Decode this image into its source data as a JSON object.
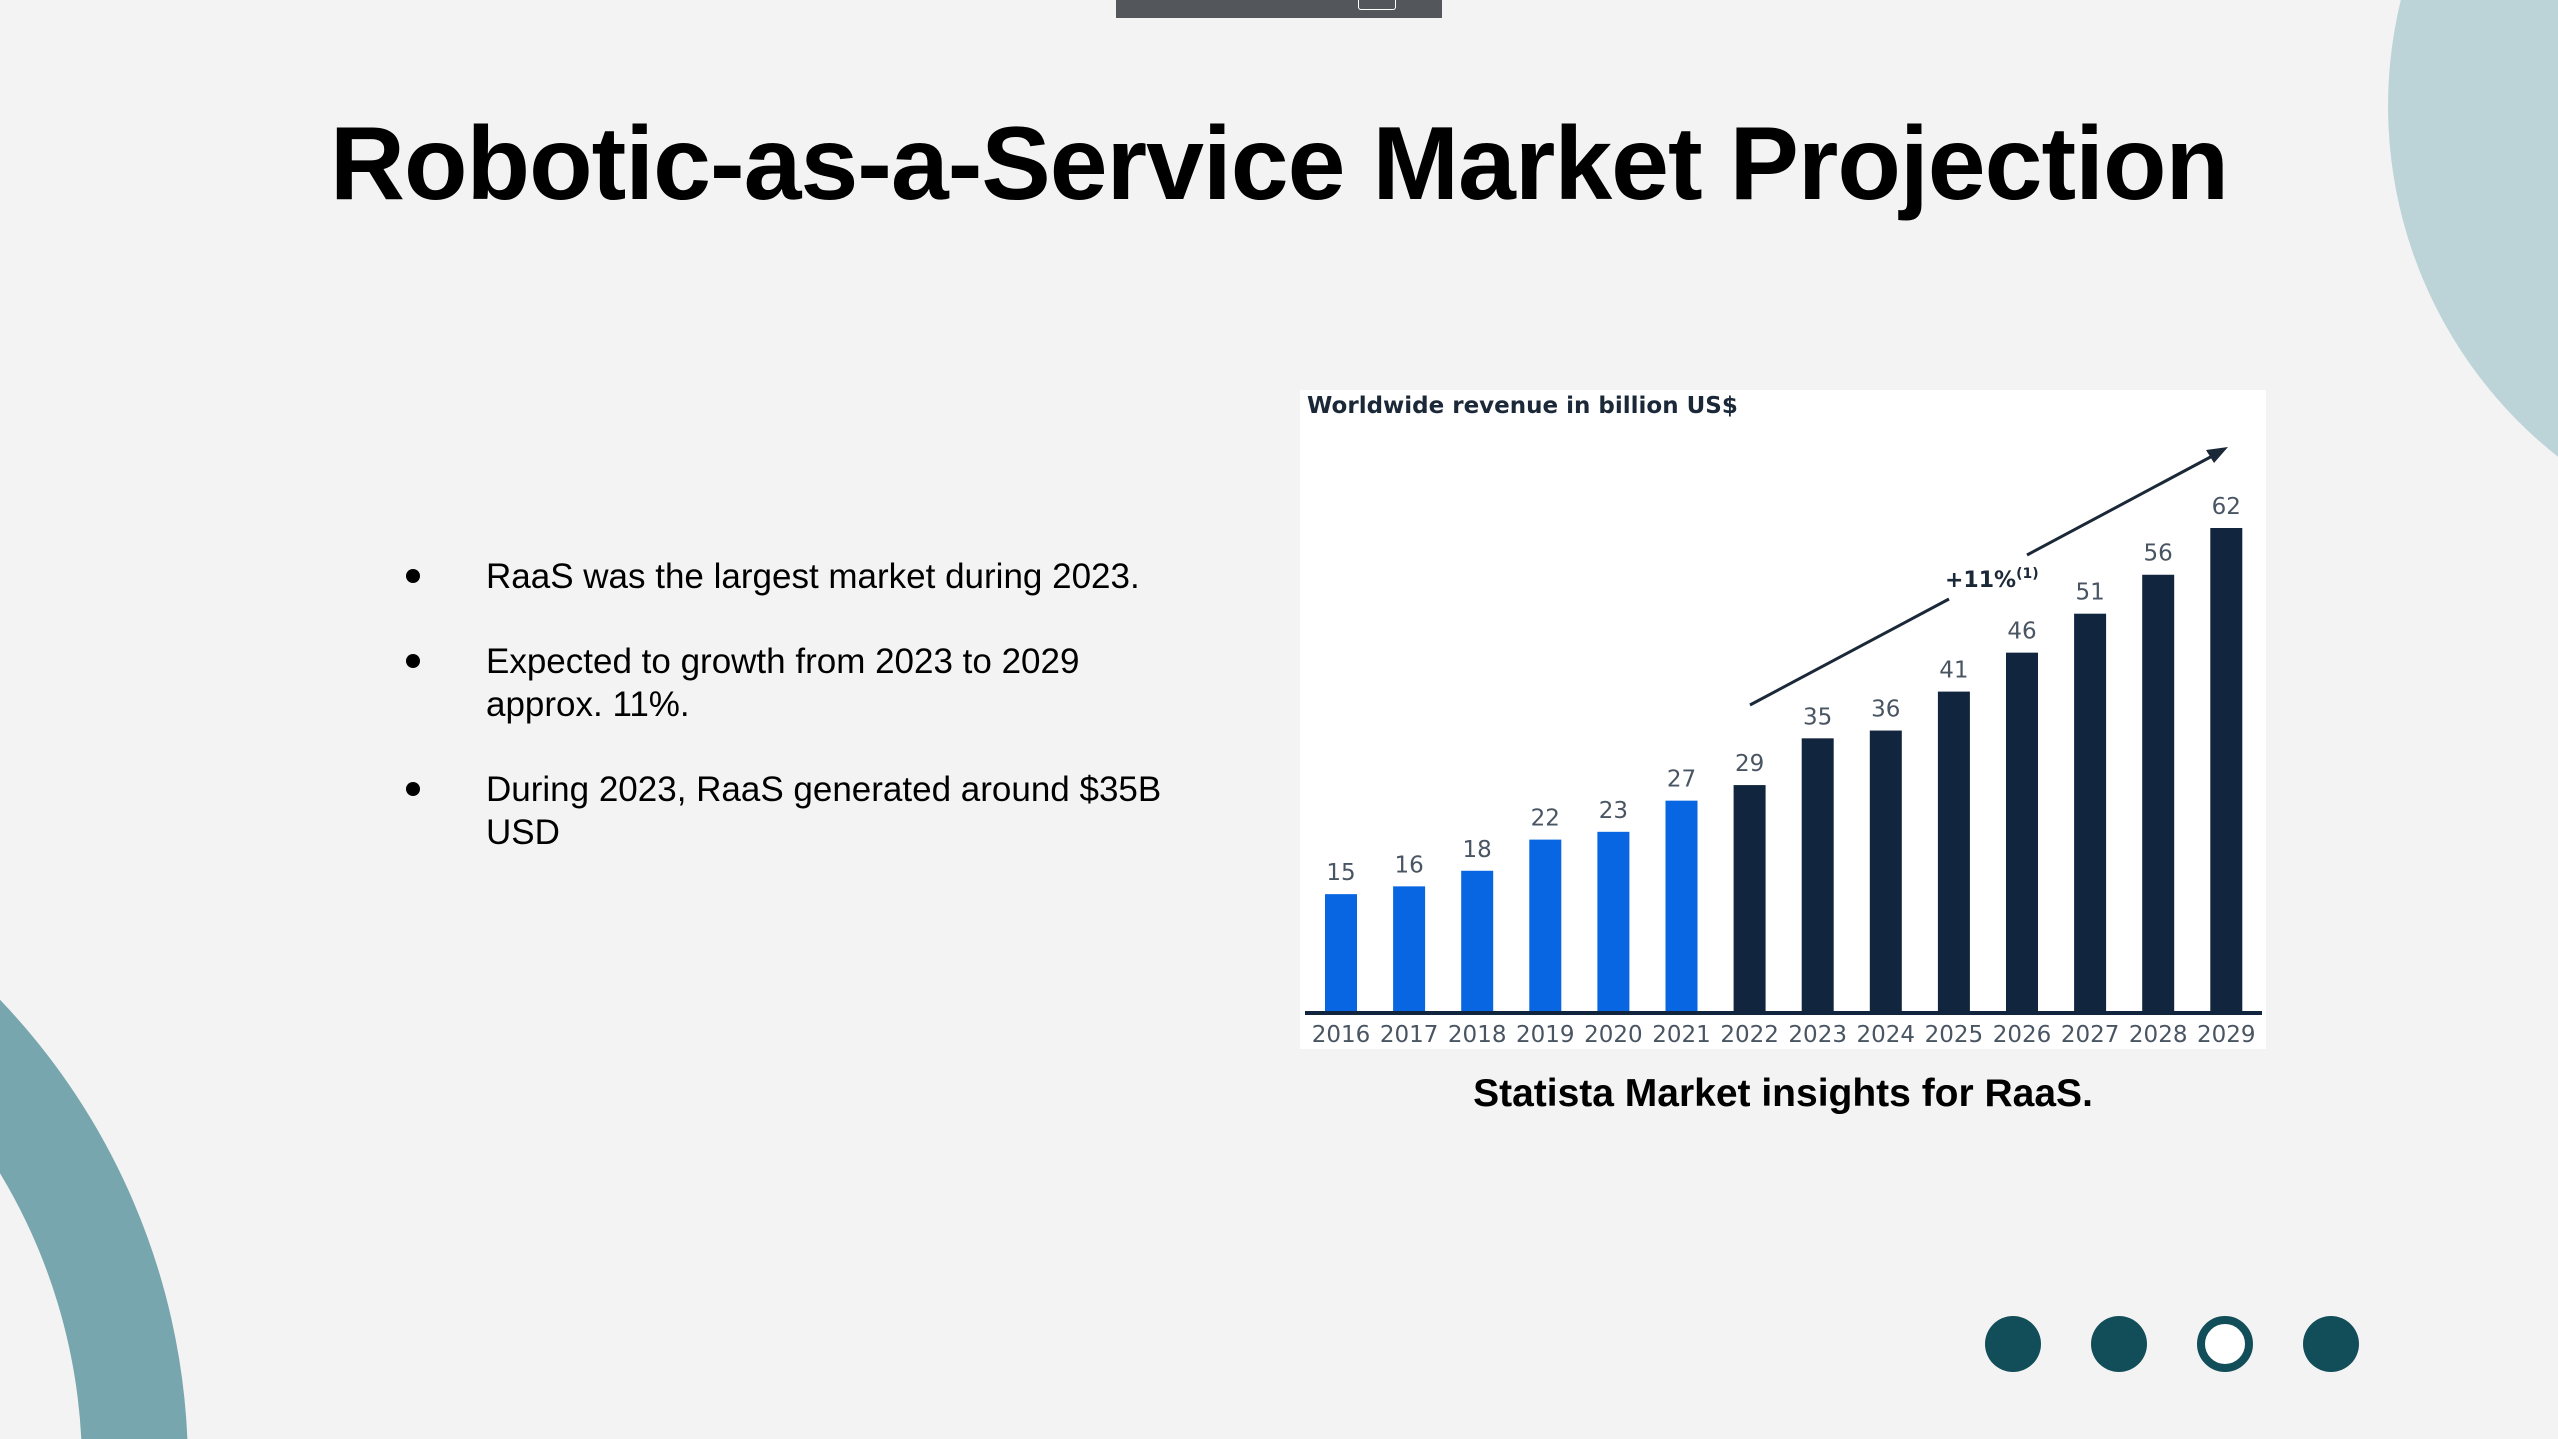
{
  "slide": {
    "title": "Robotic-as-a-Service Market Projection",
    "bullets": [
      "RaaS was the largest market during 2023.",
      "Expected to growth from 2023 to 2029 approx. 11%.",
      "During 2023, RaaS generated around $35B USD"
    ],
    "caption": "Statista Market insights for RaaS.",
    "pagination": {
      "count": 4,
      "active_index": 2
    },
    "colors": {
      "background": "#F3F3F3",
      "dot": "#124E5A",
      "decor_top": "#BCD4D8",
      "decor_bottom": "#78A6AE"
    }
  },
  "chart_data": {
    "type": "bar",
    "title": "Worldwide revenue in billion US$",
    "categories": [
      "2016",
      "2017",
      "2018",
      "2019",
      "2020",
      "2021",
      "2022",
      "2023",
      "2024",
      "2025",
      "2026",
      "2027",
      "2028",
      "2029"
    ],
    "values": [
      15,
      16,
      18,
      22,
      23,
      27,
      29,
      35,
      36,
      41,
      46,
      51,
      56,
      62
    ],
    "value_labels": [
      "15",
      "16",
      "18",
      "22",
      "23",
      "27",
      "29",
      "35",
      "36",
      "41",
      "46",
      "51",
      "56",
      "62"
    ],
    "annotation": {
      "text": "+11%",
      "superscript": "(1)"
    },
    "colors": {
      "historic": "#0866E2",
      "forecast": "#12253F"
    },
    "historic_through": "2021",
    "ylim": [
      0,
      62
    ],
    "grid": false,
    "legend": "none"
  }
}
